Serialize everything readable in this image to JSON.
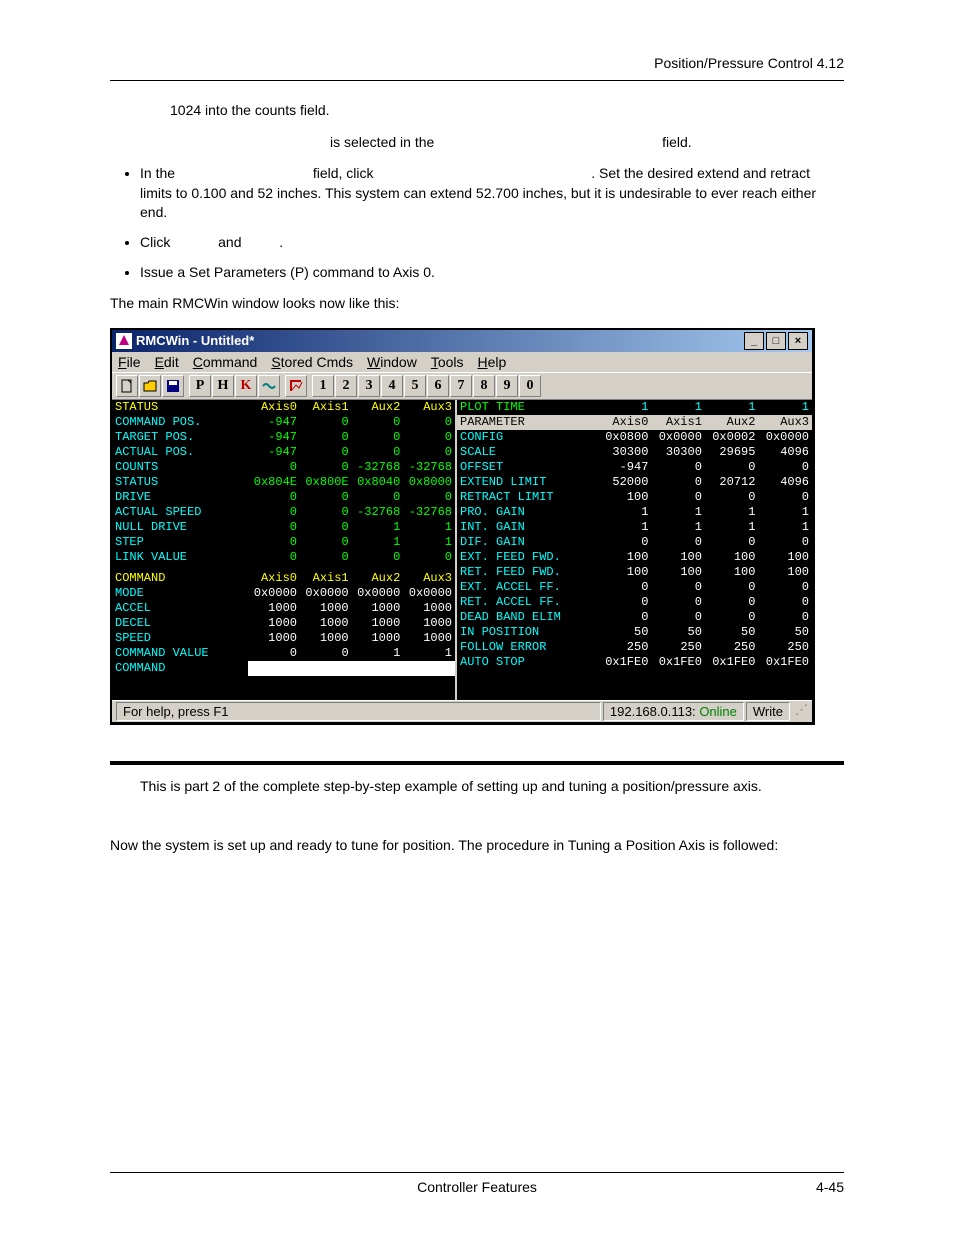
{
  "header_right": "Position/Pressure Control  4.12",
  "para1": "1024 into the counts field.",
  "para2_a": "is selected in the",
  "para2_b": "field.",
  "bullet1_a": "In the",
  "bullet1_b": "field, click",
  "bullet1_c": ". Set the desired extend and retract limits to 0.100 and 52 inches. This system can extend 52.700 inches, but it is undesirable to ever reach either end.",
  "bullet2_a": "Click",
  "bullet2_b": "and",
  "bullet2_c": ".",
  "bullet3": "Issue a Set Parameters (P) command to Axis 0.",
  "para3": "The main RMCWin window looks now like this:",
  "win": {
    "title": "RMCWin - Untitled*",
    "menus": [
      "File",
      "Edit",
      "Command",
      "Stored Cmds",
      "Window",
      "Tools",
      "Help"
    ],
    "menu_underline_idx": [
      0,
      0,
      0,
      0,
      0,
      0,
      0
    ],
    "toolbar_letters": [
      "P",
      "H",
      "K"
    ],
    "toolbar_nums": [
      "1",
      "2",
      "3",
      "4",
      "5",
      "6",
      "7",
      "8",
      "9",
      "0"
    ],
    "left": {
      "cols": [
        "Axis0",
        "Axis1",
        "Aux2",
        "Aux3"
      ],
      "status_label": "STATUS",
      "rows1": [
        {
          "label": "COMMAND POS.",
          "vals": [
            "-947",
            "0",
            "0",
            "0"
          ],
          "green": true
        },
        {
          "label": "TARGET  POS.",
          "vals": [
            "-947",
            "0",
            "0",
            "0"
          ],
          "green": true
        },
        {
          "label": "ACTUAL  POS.",
          "vals": [
            "-947",
            "0",
            "0",
            "0"
          ],
          "green": true
        },
        {
          "label": "COUNTS",
          "vals": [
            "0",
            "0",
            "-32768",
            "-32768"
          ],
          "green": true
        },
        {
          "label": "STATUS",
          "vals": [
            "0x804E",
            "0x800E",
            "0x8040",
            "0x8000"
          ],
          "green": true
        },
        {
          "label": "DRIVE",
          "vals": [
            "0",
            "0",
            "0",
            "0"
          ],
          "green": true
        },
        {
          "label": "ACTUAL SPEED",
          "vals": [
            "0",
            "0",
            "-32768",
            "-32768"
          ],
          "green": true
        },
        {
          "label": "NULL DRIVE",
          "vals": [
            "0",
            "0",
            "1",
            "1"
          ],
          "green": true
        },
        {
          "label": "STEP",
          "vals": [
            "0",
            "0",
            "1",
            "1"
          ],
          "green": true
        },
        {
          "label": "LINK VALUE",
          "vals": [
            "0",
            "0",
            "0",
            "0"
          ],
          "green": true
        }
      ],
      "cmd_label": "COMMAND",
      "rows2": [
        {
          "label": "MODE",
          "vals": [
            "0x0000",
            "0x0000",
            "0x0000",
            "0x0000"
          ]
        },
        {
          "label": "ACCEL",
          "vals": [
            "1000",
            "1000",
            "1000",
            "1000"
          ]
        },
        {
          "label": "DECEL",
          "vals": [
            "1000",
            "1000",
            "1000",
            "1000"
          ]
        },
        {
          "label": "SPEED",
          "vals": [
            "1000",
            "1000",
            "1000",
            "1000"
          ]
        },
        {
          "label": "COMMAND VALUE",
          "vals": [
            "0",
            "0",
            "1",
            "1"
          ]
        },
        {
          "label": "COMMAND",
          "vals": [
            "",
            "",
            "",
            ""
          ]
        }
      ]
    },
    "right": {
      "plot_label": "PLOT TIME",
      "plot_vals": [
        "1",
        "1",
        "1",
        "1"
      ],
      "param_label": "PARAMETER",
      "cols": [
        "Axis0",
        "Axis1",
        "Aux2",
        "Aux3"
      ],
      "rows": [
        {
          "label": "CONFIG",
          "vals": [
            "0x0800",
            "0x0000",
            "0x0002",
            "0x0000"
          ]
        },
        {
          "label": "SCALE",
          "vals": [
            "30300",
            "30300",
            "29695",
            "4096"
          ]
        },
        {
          "label": "OFFSET",
          "vals": [
            "-947",
            "0",
            "0",
            "0"
          ]
        },
        {
          "label": "EXTEND  LIMIT",
          "vals": [
            "52000",
            "0",
            "20712",
            "4096"
          ]
        },
        {
          "label": "RETRACT LIMIT",
          "vals": [
            "100",
            "0",
            "0",
            "0"
          ]
        },
        {
          "label": "PRO. GAIN",
          "vals": [
            "1",
            "1",
            "1",
            "1"
          ]
        },
        {
          "label": "INT. GAIN",
          "vals": [
            "1",
            "1",
            "1",
            "1"
          ]
        },
        {
          "label": "DIF. GAIN",
          "vals": [
            "0",
            "0",
            "0",
            "0"
          ]
        },
        {
          "label": "EXT. FEED FWD.",
          "vals": [
            "100",
            "100",
            "100",
            "100"
          ]
        },
        {
          "label": "RET. FEED FWD.",
          "vals": [
            "100",
            "100",
            "100",
            "100"
          ]
        },
        {
          "label": "EXT. ACCEL FF.",
          "vals": [
            "0",
            "0",
            "0",
            "0"
          ]
        },
        {
          "label": "RET. ACCEL FF.",
          "vals": [
            "0",
            "0",
            "0",
            "0"
          ]
        },
        {
          "label": "DEAD BAND ELIM",
          "vals": [
            "0",
            "0",
            "0",
            "0"
          ]
        },
        {
          "label": "IN POSITION",
          "vals": [
            "50",
            "50",
            "50",
            "50"
          ]
        },
        {
          "label": "FOLLOW ERROR",
          "vals": [
            "250",
            "250",
            "250",
            "250"
          ]
        },
        {
          "label": "AUTO STOP",
          "vals": [
            "0x1FE0",
            "0x1FE0",
            "0x1FE0",
            "0x1FE0"
          ]
        }
      ]
    },
    "status_help": "For help, press F1",
    "status_ip": "192.168.0.113:",
    "status_online": "Online",
    "status_write": "Write"
  },
  "section_para1": "This is part 2 of the complete step-by-step example of setting up and tuning a position/pressure axis.",
  "section_para2": "Now the system is set up and ready to tune for position. The procedure in Tuning a Position Axis is followed:",
  "footer_left": "Controller Features",
  "footer_right": "4-45"
}
